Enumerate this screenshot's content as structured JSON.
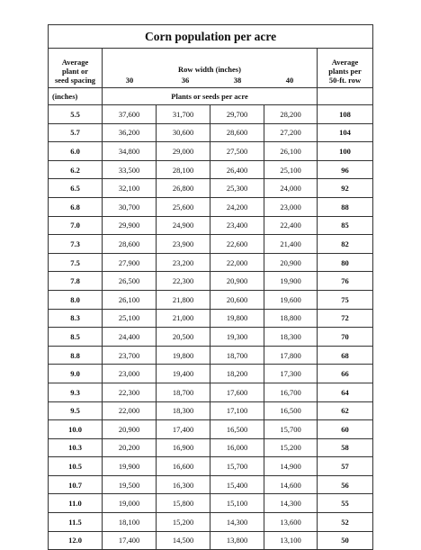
{
  "table": {
    "title": "Corn population per acre",
    "spacing_header": [
      "Average",
      "plant or",
      "seed spacing"
    ],
    "row_width_title": "Row width (inches)",
    "row_widths": [
      "30",
      "36",
      "38",
      "40"
    ],
    "plants_header": [
      "Average",
      "plants per",
      "50-ft. row"
    ],
    "spacing_unit": "(inches)",
    "measure_label": "Plants or seeds per acre",
    "rows": [
      {
        "spacing": "5.5",
        "values": [
          "37,600",
          "31,700",
          "29,700",
          "28,200"
        ],
        "plants": "108"
      },
      {
        "spacing": "5.7",
        "values": [
          "36,200",
          "30,600",
          "28,600",
          "27,200"
        ],
        "plants": "104"
      },
      {
        "spacing": "6.0",
        "values": [
          "34,800",
          "29,000",
          "27,500",
          "26,100"
        ],
        "plants": "100"
      },
      {
        "spacing": "6.2",
        "values": [
          "33,500",
          "28,100",
          "26,400",
          "25,100"
        ],
        "plants": "96"
      },
      {
        "spacing": "6.5",
        "values": [
          "32,100",
          "26,800",
          "25,300",
          "24,000"
        ],
        "plants": "92"
      },
      {
        "spacing": "6.8",
        "values": [
          "30,700",
          "25,600",
          "24,200",
          "23,000"
        ],
        "plants": "88"
      },
      {
        "spacing": "7.0",
        "values": [
          "29,900",
          "24,900",
          "23,400",
          "22,400"
        ],
        "plants": "85"
      },
      {
        "spacing": "7.3",
        "values": [
          "28,600",
          "23,900",
          "22,600",
          "21,400"
        ],
        "plants": "82"
      },
      {
        "spacing": "7.5",
        "values": [
          "27,900",
          "23,200",
          "22,000",
          "20,900"
        ],
        "plants": "80"
      },
      {
        "spacing": "7.8",
        "values": [
          "26,500",
          "22,300",
          "20,900",
          "19,900"
        ],
        "plants": "76"
      },
      {
        "spacing": "8.0",
        "values": [
          "26,100",
          "21,800",
          "20,600",
          "19,600"
        ],
        "plants": "75"
      },
      {
        "spacing": "8.3",
        "values": [
          "25,100",
          "21,000",
          "19,800",
          "18,800"
        ],
        "plants": "72"
      },
      {
        "spacing": "8.5",
        "values": [
          "24,400",
          "20,500",
          "19,300",
          "18,300"
        ],
        "plants": "70"
      },
      {
        "spacing": "8.8",
        "values": [
          "23,700",
          "19,800",
          "18,700",
          "17,800"
        ],
        "plants": "68"
      },
      {
        "spacing": "9.0",
        "values": [
          "23,000",
          "19,400",
          "18,200",
          "17,300"
        ],
        "plants": "66"
      },
      {
        "spacing": "9.3",
        "values": [
          "22,300",
          "18,700",
          "17,600",
          "16,700"
        ],
        "plants": "64"
      },
      {
        "spacing": "9.5",
        "values": [
          "22,000",
          "18,300",
          "17,100",
          "16,500"
        ],
        "plants": "62"
      },
      {
        "spacing": "10.0",
        "values": [
          "20,900",
          "17,400",
          "16,500",
          "15,700"
        ],
        "plants": "60"
      },
      {
        "spacing": "10.3",
        "values": [
          "20,200",
          "16,900",
          "16,000",
          "15,200"
        ],
        "plants": "58"
      },
      {
        "spacing": "10.5",
        "values": [
          "19,900",
          "16,600",
          "15,700",
          "14,900"
        ],
        "plants": "57"
      },
      {
        "spacing": "10.7",
        "values": [
          "19,500",
          "16,300",
          "15,400",
          "14,600"
        ],
        "plants": "56"
      },
      {
        "spacing": "11.0",
        "values": [
          "19,000",
          "15,800",
          "15,100",
          "14,300"
        ],
        "plants": "55"
      },
      {
        "spacing": "11.5",
        "values": [
          "18,100",
          "15,200",
          "14,300",
          "13,600"
        ],
        "plants": "52"
      },
      {
        "spacing": "12.0",
        "values": [
          "17,400",
          "14,500",
          "13,800",
          "13,100"
        ],
        "plants": "50"
      }
    ]
  }
}
